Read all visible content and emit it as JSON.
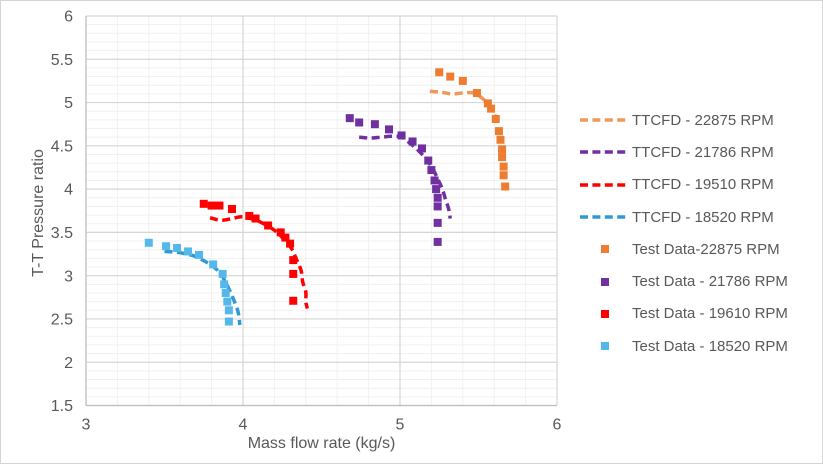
{
  "styles": {
    "background": "#ffffff",
    "border": "#d4d4d4",
    "text": "#595959",
    "grid_major": "#d6d6d6",
    "grid_minor": "#f1f1f1",
    "axis_line": "#bfbfbf"
  },
  "chart_data": {
    "type": "scatter",
    "title": "",
    "xlabel": "Mass flow rate (kg/s)",
    "ylabel": "T-T Pressure ratio",
    "xlim": [
      3,
      6
    ],
    "ylim": [
      1.5,
      6
    ],
    "x_ticklabels": [
      "3",
      "4",
      "5",
      "6"
    ],
    "y_ticklabels": [
      "1.5",
      "2",
      "2.5",
      "3",
      "3.5",
      "4",
      "4.5",
      "5",
      "5.5",
      "6"
    ],
    "x_major_step": 1,
    "x_minor_step": 0.2,
    "y_major_step": 0.5,
    "y_minor_step": 0.1,
    "grid": "major+minor",
    "legend_position": "right",
    "series": [
      {
        "name": "TTCFD - 22875 RPM",
        "kind": "line",
        "dash": true,
        "color": "#F19858",
        "points": [
          [
            5.19,
            5.13
          ],
          [
            5.26,
            5.12
          ],
          [
            5.33,
            5.1
          ],
          [
            5.4,
            5.11
          ],
          [
            5.47,
            5.11
          ],
          [
            5.53,
            5.04
          ],
          [
            5.57,
            4.96
          ],
          [
            5.6,
            4.87
          ],
          [
            5.62,
            4.77
          ]
        ]
      },
      {
        "name": "TTCFD - 21786 RPM",
        "kind": "line",
        "dash": true,
        "color": "#7030A0",
        "points": [
          [
            4.74,
            4.6
          ],
          [
            4.81,
            4.59
          ],
          [
            4.88,
            4.6
          ],
          [
            4.95,
            4.61
          ],
          [
            5.01,
            4.6
          ],
          [
            5.07,
            4.52
          ],
          [
            5.12,
            4.44
          ],
          [
            5.17,
            4.34
          ],
          [
            5.21,
            4.23
          ],
          [
            5.24,
            4.12
          ],
          [
            5.27,
            4.0
          ],
          [
            5.29,
            3.88
          ],
          [
            5.31,
            3.77
          ],
          [
            5.32,
            3.66
          ]
        ]
      },
      {
        "name": "TTCFD - 19510 RPM",
        "kind": "line",
        "dash": true,
        "color": "#FF0000",
        "points": [
          [
            3.79,
            3.67
          ],
          [
            3.86,
            3.64
          ],
          [
            3.93,
            3.66
          ],
          [
            3.99,
            3.68
          ],
          [
            4.05,
            3.66
          ],
          [
            4.11,
            3.62
          ],
          [
            4.18,
            3.55
          ],
          [
            4.23,
            3.48
          ],
          [
            4.27,
            3.4
          ],
          [
            4.31,
            3.31
          ],
          [
            4.34,
            3.19
          ],
          [
            4.37,
            3.06
          ],
          [
            4.38,
            2.93
          ],
          [
            4.4,
            2.81
          ],
          [
            4.4,
            2.7
          ],
          [
            4.41,
            2.62
          ]
        ]
      },
      {
        "name": "TTCFD - 18520 RPM",
        "kind": "line",
        "dash": true,
        "color": "#2E9BD5",
        "points": [
          [
            3.5,
            3.28
          ],
          [
            3.58,
            3.27
          ],
          [
            3.64,
            3.25
          ],
          [
            3.7,
            3.22
          ],
          [
            3.79,
            3.13
          ],
          [
            3.85,
            3.04
          ],
          [
            3.89,
            2.92
          ],
          [
            3.92,
            2.81
          ],
          [
            3.95,
            2.68
          ],
          [
            3.97,
            2.57
          ],
          [
            3.98,
            2.43
          ]
        ]
      },
      {
        "name": "Test Data-22875 RPM",
        "kind": "scatter",
        "color": "#ED7D31",
        "points": [
          [
            5.25,
            5.35
          ],
          [
            5.32,
            5.3
          ],
          [
            5.4,
            5.25
          ],
          [
            5.49,
            5.11
          ],
          [
            5.56,
            4.99
          ],
          [
            5.58,
            4.93
          ],
          [
            5.61,
            4.81
          ],
          [
            5.63,
            4.67
          ],
          [
            5.64,
            4.57
          ],
          [
            5.65,
            4.46
          ],
          [
            5.65,
            4.37
          ],
          [
            5.66,
            4.26
          ],
          [
            5.66,
            4.16
          ],
          [
            5.67,
            4.03
          ]
        ]
      },
      {
        "name": "Test Data - 21786 RPM",
        "kind": "scatter",
        "color": "#7030A0",
        "points": [
          [
            4.68,
            4.82
          ],
          [
            4.74,
            4.77
          ],
          [
            4.84,
            4.75
          ],
          [
            4.93,
            4.69
          ],
          [
            5.01,
            4.62
          ],
          [
            5.08,
            4.55
          ],
          [
            5.14,
            4.47
          ],
          [
            5.18,
            4.33
          ],
          [
            5.2,
            4.22
          ],
          [
            5.22,
            4.1
          ],
          [
            5.23,
            4.0
          ],
          [
            5.24,
            3.9
          ],
          [
            5.24,
            3.8
          ],
          [
            5.24,
            3.61
          ],
          [
            5.24,
            3.39
          ]
        ]
      },
      {
        "name": "Test Data - 19610 RPM",
        "kind": "scatter",
        "color": "#FF0000",
        "points": [
          [
            3.75,
            3.83
          ],
          [
            3.8,
            3.81
          ],
          [
            3.85,
            3.81
          ],
          [
            3.93,
            3.77
          ],
          [
            4.04,
            3.69
          ],
          [
            4.08,
            3.66
          ],
          [
            4.16,
            3.58
          ],
          [
            4.24,
            3.5
          ],
          [
            4.27,
            3.44
          ],
          [
            4.3,
            3.37
          ],
          [
            4.32,
            3.18
          ],
          [
            4.32,
            3.02
          ],
          [
            4.32,
            2.71
          ]
        ]
      },
      {
        "name": "Test Data - 18520 RPM",
        "kind": "scatter",
        "color": "#55B8EA",
        "points": [
          [
            3.4,
            3.38
          ],
          [
            3.51,
            3.34
          ],
          [
            3.58,
            3.32
          ],
          [
            3.65,
            3.28
          ],
          [
            3.72,
            3.24
          ],
          [
            3.81,
            3.13
          ],
          [
            3.87,
            3.02
          ],
          [
            3.88,
            2.9
          ],
          [
            3.89,
            2.8
          ],
          [
            3.9,
            2.7
          ],
          [
            3.91,
            2.6
          ],
          [
            3.91,
            2.47
          ]
        ]
      }
    ]
  }
}
